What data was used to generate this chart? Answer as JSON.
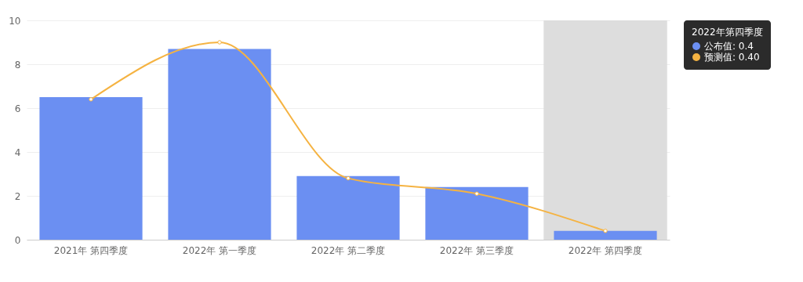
{
  "chart_data": {
    "type": "bar",
    "categories": [
      "2021年 第四季度",
      "2022年 第一季度",
      "2022年 第二季度",
      "2022年 第三季度",
      "2022年 第四季度"
    ],
    "series": [
      {
        "name": "公布值: 0.4",
        "color": "#6b8ff2",
        "values": [
          6.5,
          8.7,
          2.9,
          2.4,
          0.4
        ]
      },
      {
        "name": "预测值: 0.40",
        "type": "line",
        "color": "#f5b342",
        "values": [
          6.4,
          9.0,
          2.8,
          2.1,
          0.4
        ]
      }
    ],
    "legend_title": "2022年第四季度",
    "legend": "right",
    "bands": [
      {
        "axis": "x",
        "from": "2022年 第四季度",
        "to": "2022年 第四季度",
        "color": "#dddddd"
      }
    ],
    "ylim": [
      0,
      10
    ],
    "yticks": [
      0,
      2,
      4,
      6,
      8,
      10
    ],
    "grid": "y",
    "marker": "circle",
    "line_style": "solid"
  }
}
